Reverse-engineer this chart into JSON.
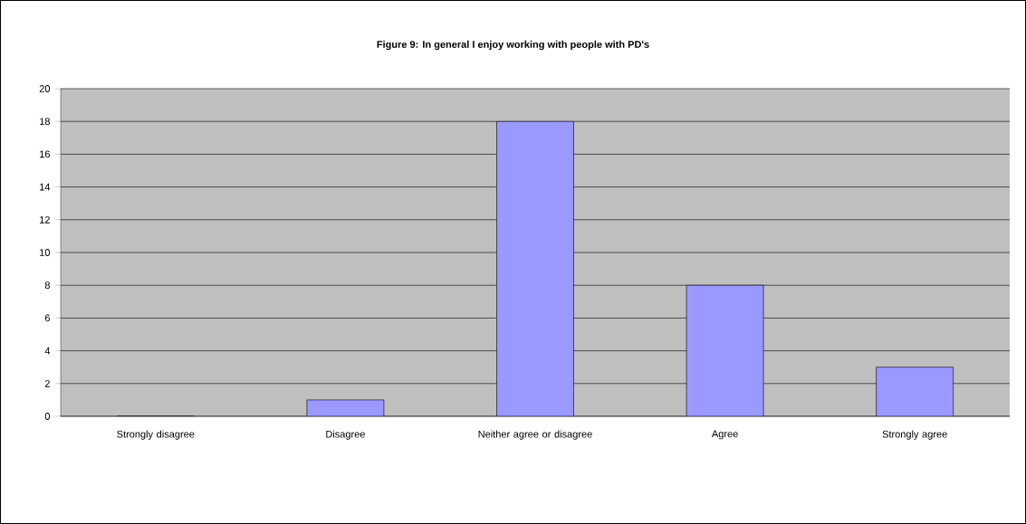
{
  "chart_data": {
    "type": "bar",
    "title": "Figure 9:  In general I enjoy working with people with PD's",
    "categories": [
      "Strongly disagree",
      "Disagree",
      "Neither agree or disagree",
      "Agree",
      "Strongly agree"
    ],
    "values": [
      0,
      1,
      18,
      8,
      3
    ],
    "color": "#9999ff",
    "ylim": [
      0,
      20
    ],
    "yticks": [
      0,
      2,
      4,
      6,
      8,
      10,
      12,
      14,
      16,
      18,
      20
    ],
    "grid": "y"
  }
}
